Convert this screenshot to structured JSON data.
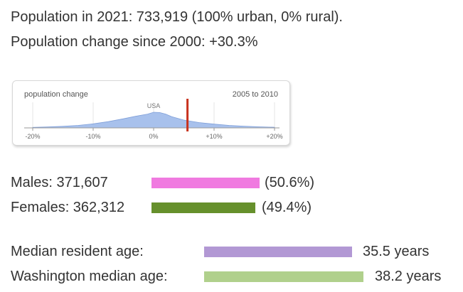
{
  "population": {
    "line1": "Population in 2021: 733,919 (100% urban, 0% rural).",
    "line2": "Population change since 2000: +30.3%"
  },
  "chart_data": {
    "type": "area",
    "title": "population change",
    "period": "2005 to 2010",
    "annotation": "USA",
    "x_ticks": [
      "-20%",
      "-10%",
      "0%",
      "+10%",
      "+20%"
    ],
    "x_range": [
      -20,
      20
    ],
    "distribution": {
      "x": [
        -20,
        -17.5,
        -15,
        -12.5,
        -10,
        -7.5,
        -5,
        -3,
        -1,
        0,
        1,
        2,
        3,
        5,
        7.5,
        10,
        12.5,
        15,
        17.5,
        20
      ],
      "y": [
        0.03,
        0.06,
        0.1,
        0.16,
        0.26,
        0.4,
        0.58,
        0.74,
        0.88,
        1.0,
        0.98,
        0.88,
        0.72,
        0.5,
        0.34,
        0.24,
        0.16,
        0.11,
        0.07,
        0.04
      ]
    },
    "marker_value": 5.6,
    "colors": {
      "area_fill": "#a8c1ec",
      "area_stroke": "#7f9fd9",
      "marker": "#c8321e",
      "grid": "#e4e4e4"
    }
  },
  "gender": {
    "males_label": "Males: 371,607",
    "males_pct": "(50.6%)",
    "males_value": 50.6,
    "females_label": "Females: 362,312",
    "females_pct": "(49.4%)",
    "females_value": 49.4,
    "colors": {
      "male": "#f07ae0",
      "female": "#66902c"
    }
  },
  "age": {
    "median_label": "Median resident age:",
    "median_value_text": "35.5 years",
    "median_value": 35.5,
    "state_label": "Washington median age:",
    "state_value_text": "38.2 years",
    "state_value": 38.2,
    "colors": {
      "median": "#b298d4",
      "state": "#b0d08c"
    }
  }
}
